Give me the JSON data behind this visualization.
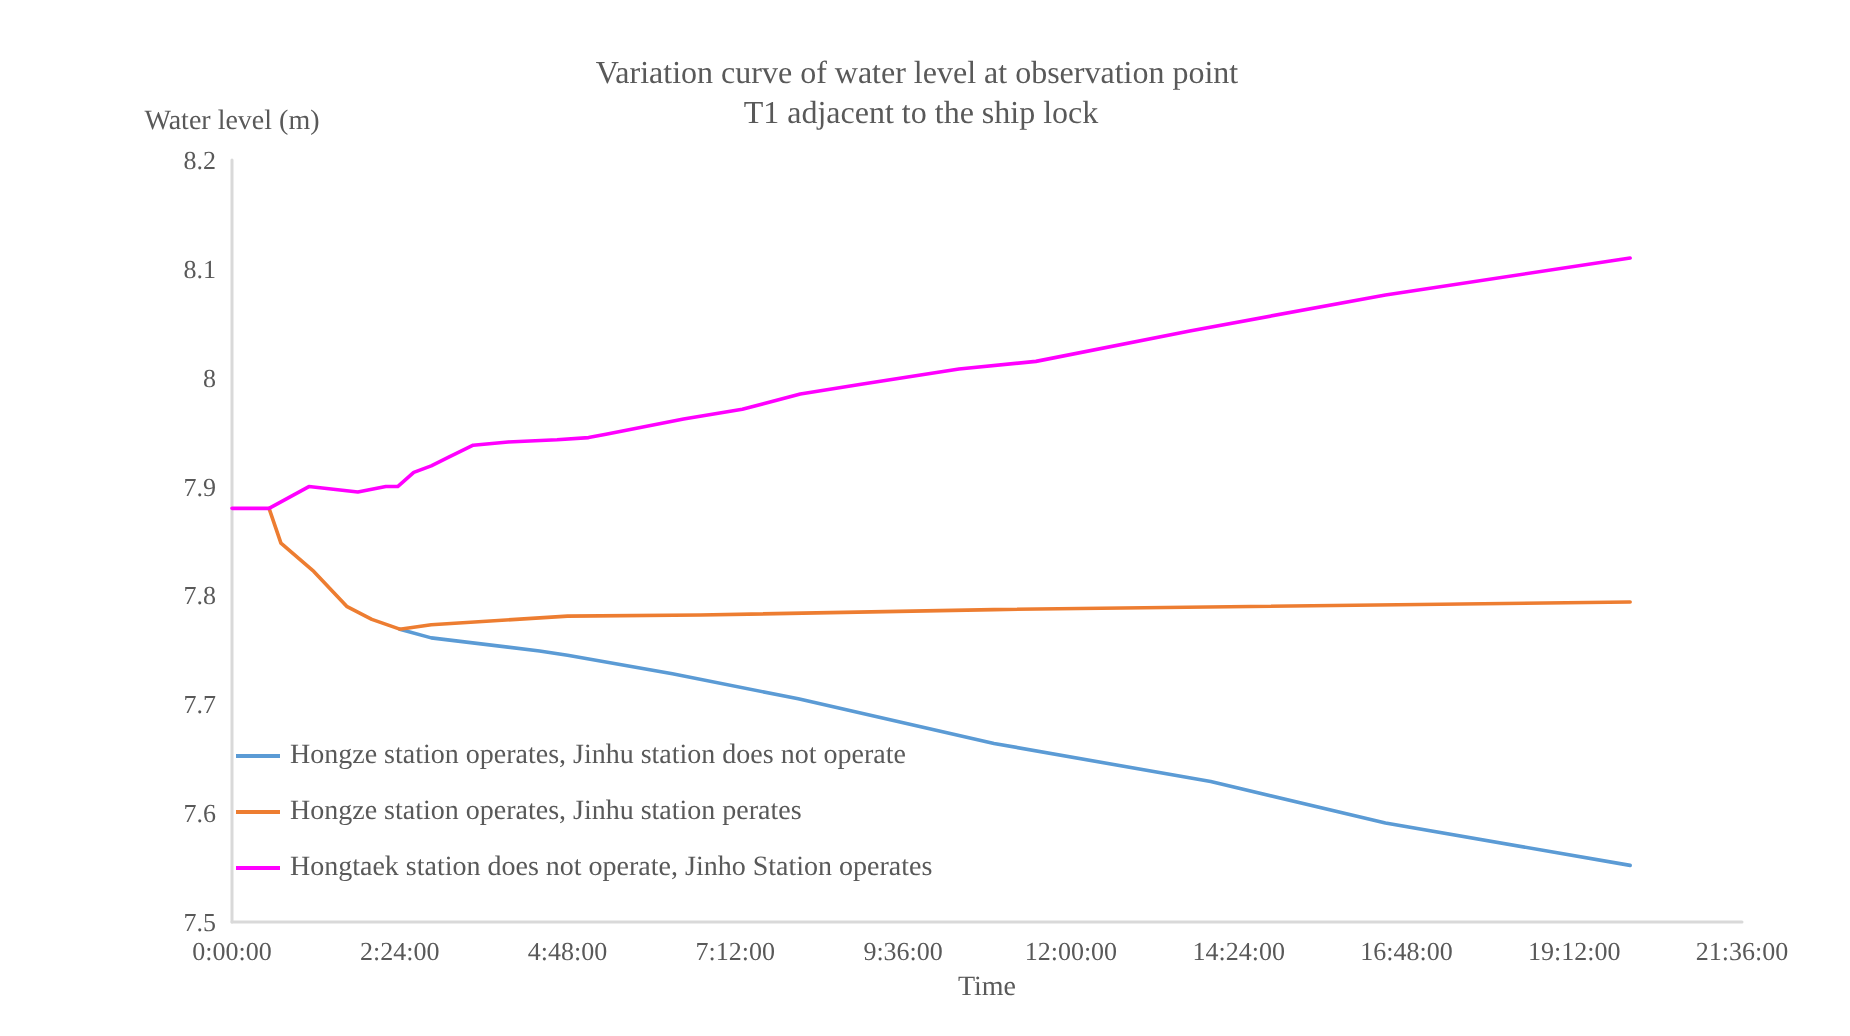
{
  "chart_data": {
    "type": "line",
    "title": "Variation curve of water level at observation point T1 adjacent to the ship lock",
    "xlabel": "Time",
    "ylabel": "Water level (m)",
    "xlim": [
      0,
      21.6
    ],
    "xticks": [
      {
        "value": 0,
        "label": "0:00:00"
      },
      {
        "value": 2.4,
        "label": "2:24:00"
      },
      {
        "value": 4.8,
        "label": "4:48:00"
      },
      {
        "value": 7.2,
        "label": "7:12:00"
      },
      {
        "value": 9.6,
        "label": "9:36:00"
      },
      {
        "value": 12,
        "label": "12:00:00"
      },
      {
        "value": 14.4,
        "label": "14:24:00"
      },
      {
        "value": 16.8,
        "label": "16:48:00"
      },
      {
        "value": 19.2,
        "label": "19:12:00"
      },
      {
        "value": 21.6,
        "label": "21:36:00"
      }
    ],
    "ylim": [
      7.5,
      8.2
    ],
    "yticks": [
      7.5,
      7.6,
      7.7,
      7.8,
      7.9,
      8,
      8.1,
      8.2
    ],
    "grid": false,
    "legend": "bottom left",
    "marker": "none",
    "line_style": "solid",
    "series": [
      {
        "name": "Hongze station operates, Jinhu station does not operate",
        "color": "#5b9bd5",
        "x": [
          2.4,
          2.85,
          4.4,
          4.8,
          6.3,
          8.1,
          10.9,
          14,
          16.5,
          20
        ],
        "values": [
          7.769,
          7.761,
          7.749,
          7.745,
          7.728,
          7.705,
          7.664,
          7.629,
          7.591,
          7.552
        ]
      },
      {
        "name": "Hongze station operates, Jinhu station perates",
        "color": "#ed7d31",
        "x": [
          0.53,
          0.7,
          1.17,
          1.64,
          2.0,
          2.4,
          2.85,
          4.8,
          6.7,
          10.9,
          20
        ],
        "values": [
          7.88,
          7.848,
          7.822,
          7.79,
          7.778,
          7.769,
          7.773,
          7.781,
          7.782,
          7.787,
          7.794
        ]
      },
      {
        "name": "Hongtaek station does not operate, Jinho Station operates",
        "color": "#ff00ff",
        "x": [
          0,
          0.53,
          1.1,
          1.8,
          2.2,
          2.37,
          2.6,
          2.85,
          3.1,
          3.45,
          3.95,
          4.65,
          5.1,
          5.35,
          6.46,
          7.3,
          8.13,
          9.0,
          10.4,
          11.5,
          13.7,
          16.5,
          20
        ],
        "values": [
          7.88,
          7.88,
          7.9,
          7.895,
          7.9,
          7.9,
          7.913,
          7.919,
          7.927,
          7.938,
          7.941,
          7.943,
          7.945,
          7.948,
          7.962,
          7.971,
          7.985,
          7.994,
          8.008,
          8.015,
          8.043,
          8.076,
          8.11
        ]
      }
    ]
  }
}
